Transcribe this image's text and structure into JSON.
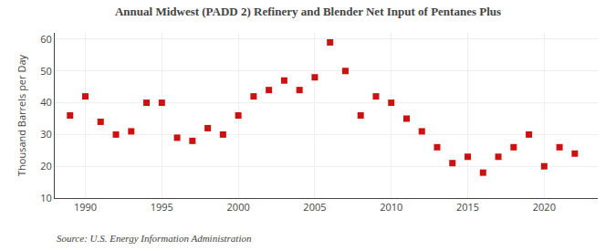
{
  "chart_data": {
    "type": "scatter",
    "title": "Annual Midwest (PADD 2) Refinery and Blender Net Input of Pentanes Plus",
    "ylabel": "Thousand Barrels per Day",
    "source": "Source: U.S. Energy Information Administration",
    "x": [
      1989,
      1990,
      1991,
      1992,
      1993,
      1994,
      1995,
      1996,
      1997,
      1998,
      1999,
      2000,
      2001,
      2002,
      2003,
      2004,
      2005,
      2006,
      2007,
      2008,
      2009,
      2010,
      2011,
      2012,
      2013,
      2014,
      2015,
      2016,
      2017,
      2018,
      2019,
      2020,
      2021,
      2022
    ],
    "values": [
      36,
      42,
      34,
      30,
      31,
      40,
      40,
      29,
      28,
      32,
      30,
      36,
      42,
      44,
      47,
      44,
      48,
      59,
      50,
      36,
      42,
      40,
      35,
      31,
      26,
      21,
      23,
      18,
      23,
      26,
      30,
      20,
      26,
      24
    ],
    "color": "#cc1111",
    "marker": "square",
    "xlim": [
      1988.0,
      2023.5
    ],
    "ylim": [
      10,
      62
    ],
    "xticks": [
      1990,
      1995,
      2000,
      2005,
      2010,
      2015,
      2020
    ],
    "yticks": [
      10,
      20,
      30,
      40,
      50,
      60
    ],
    "grid": true
  }
}
